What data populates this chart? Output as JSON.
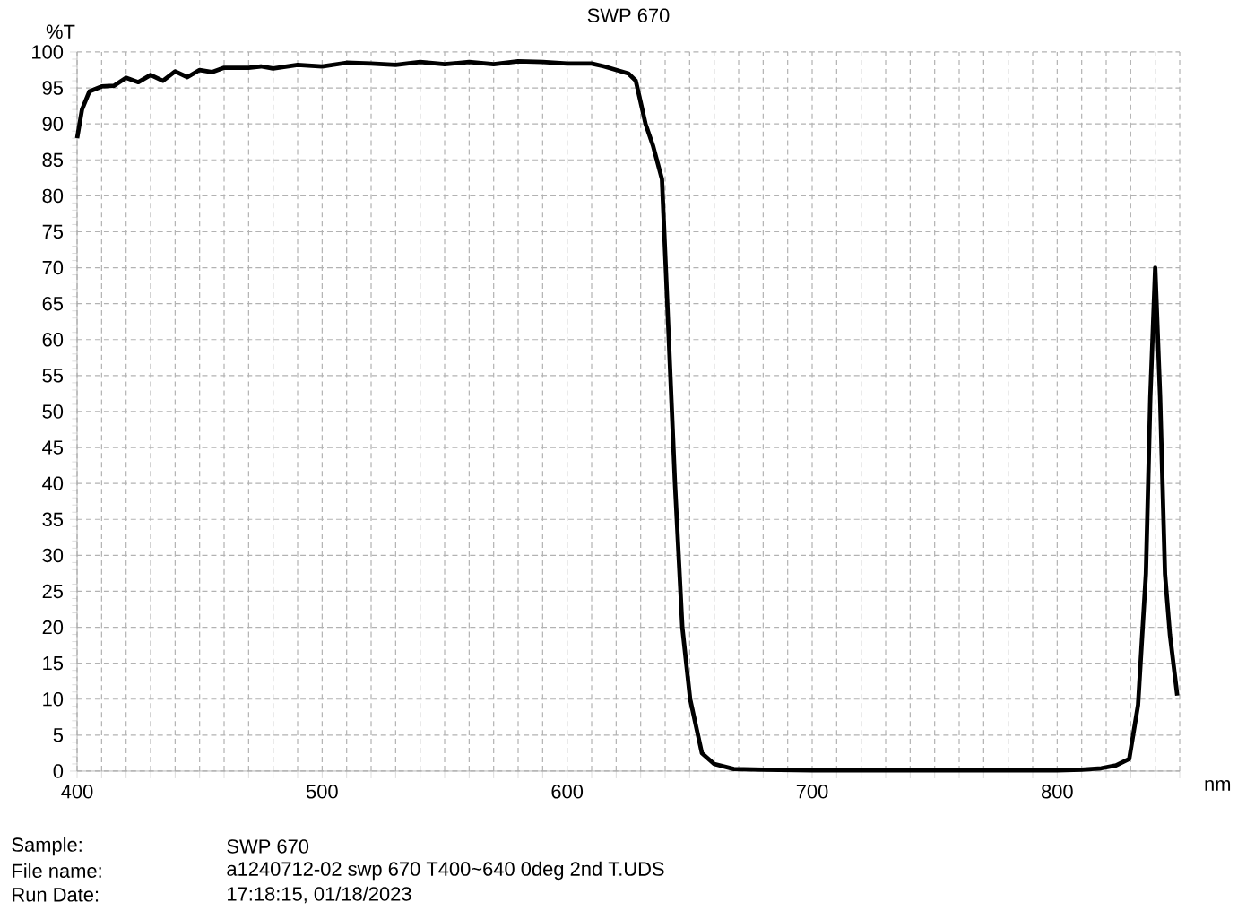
{
  "chart_data": {
    "type": "line",
    "title": "SWP 670",
    "xlabel": "nm",
    "ylabel": "%T",
    "x": [
      400,
      402,
      405,
      410,
      415,
      420,
      425,
      430,
      435,
      440,
      445,
      450,
      455,
      460,
      470,
      475,
      480,
      490,
      500,
      510,
      520,
      530,
      540,
      550,
      560,
      570,
      580,
      590,
      600,
      610,
      615,
      620,
      625,
      628,
      630,
      632,
      635,
      638.7,
      641.5,
      644,
      647,
      650.2,
      655,
      660,
      668,
      680,
      700,
      750,
      800,
      810,
      818,
      824,
      829.4,
      833,
      836.2,
      838,
      840,
      842,
      844,
      846,
      849
    ],
    "series": [
      {
        "color": "#000000",
        "values": [
          88,
          92,
          94.5,
          95.2,
          95.3,
          96.4,
          95.8,
          96.8,
          96.0,
          97.3,
          96.5,
          97.5,
          97.2,
          97.8,
          97.8,
          98.0,
          97.7,
          98.2,
          98.0,
          98.5,
          98.4,
          98.2,
          98.6,
          98.3,
          98.6,
          98.3,
          98.7,
          98.6,
          98.4,
          98.4,
          98.0,
          97.5,
          97.0,
          96,
          93,
          90,
          87,
          82.3,
          60,
          40,
          20,
          10,
          2.5,
          1,
          0.3,
          0.2,
          0.1,
          0.1,
          0.1,
          0.2,
          0.4,
          0.8,
          1.7,
          9.2,
          27.4,
          52,
          70,
          52,
          27.4,
          19,
          10.5
        ]
      }
    ],
    "xlim": [
      400,
      850
    ],
    "xticks": [
      400,
      {
        "value": 410,
        "label": null
      },
      {
        "value": 420,
        "label": null
      },
      {
        "value": 430,
        "label": null
      },
      {
        "value": 440,
        "label": null
      },
      {
        "value": 450,
        "label": null
      },
      {
        "value": 460,
        "label": null
      },
      {
        "value": 470,
        "label": null
      },
      {
        "value": 480,
        "label": null
      },
      {
        "value": 490,
        "label": null
      },
      500,
      {
        "value": 510,
        "label": null
      },
      {
        "value": 520,
        "label": null
      },
      {
        "value": 530,
        "label": null
      },
      {
        "value": 540,
        "label": null
      },
      {
        "value": 550,
        "label": null
      },
      {
        "value": 560,
        "label": null
      },
      {
        "value": 570,
        "label": null
      },
      {
        "value": 580,
        "label": null
      },
      {
        "value": 590,
        "label": null
      },
      600,
      {
        "value": 610,
        "label": null
      },
      {
        "value": 620,
        "label": null
      },
      {
        "value": 630,
        "label": null
      },
      {
        "value": 640,
        "label": null
      },
      {
        "value": 650,
        "label": null
      },
      {
        "value": 660,
        "label": null
      },
      {
        "value": 670,
        "label": null
      },
      {
        "value": 680,
        "label": null
      },
      {
        "value": 690,
        "label": null
      },
      700,
      {
        "value": 710,
        "label": null
      },
      {
        "value": 720,
        "label": null
      },
      {
        "value": 730,
        "label": null
      },
      {
        "value": 740,
        "label": null
      },
      {
        "value": 750,
        "label": null
      },
      {
        "value": 760,
        "label": null
      },
      {
        "value": 770,
        "label": null
      },
      {
        "value": 780,
        "label": null
      },
      {
        "value": 790,
        "label": null
      },
      800,
      {
        "value": 810,
        "label": null
      },
      {
        "value": 820,
        "label": null
      },
      {
        "value": 830,
        "label": null
      },
      {
        "value": 840,
        "label": null
      },
      {
        "value": 850,
        "label": null
      }
    ],
    "ylim": [
      0,
      100
    ],
    "yticks": [
      0,
      5,
      10,
      15,
      20,
      25,
      30,
      35,
      40,
      45,
      50,
      55,
      60,
      65,
      70,
      75,
      80,
      85,
      90,
      95,
      100
    ],
    "grid": true,
    "marker": "none",
    "line_style": "solid",
    "annotations": [
      "Sample:",
      "SWP 670",
      "File name:",
      "a1240712-02 swp 670 T400~640 0deg 2nd T.UDS",
      "Run Date:",
      "17:18:15, 01/18/2023"
    ]
  }
}
